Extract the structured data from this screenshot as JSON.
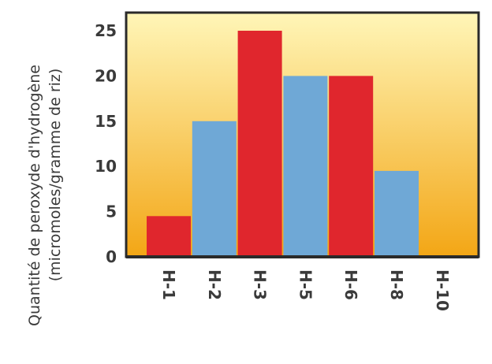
{
  "chart_data": {
    "type": "bar",
    "categories": [
      "H-1",
      "H-2",
      "H-3",
      "H-5",
      "H-6",
      "H-8",
      "H-10"
    ],
    "values": [
      4.5,
      15,
      25,
      20,
      20,
      9.5,
      0
    ],
    "colors": [
      "#e0262d",
      "#6fa8d6",
      "#e0262d",
      "#6fa8d6",
      "#e0262d",
      "#6fa8d6",
      "#e0262d"
    ],
    "ylabel_lines": [
      "Quantité de peroxyde d'hydrogène",
      "(micromoles/gramme de riz)"
    ],
    "yticks": [
      0,
      5,
      10,
      15,
      20,
      25
    ],
    "ylim": [
      0,
      27
    ],
    "grid": false,
    "background_gradient": [
      "#fff6b8",
      "#f3a615"
    ]
  }
}
